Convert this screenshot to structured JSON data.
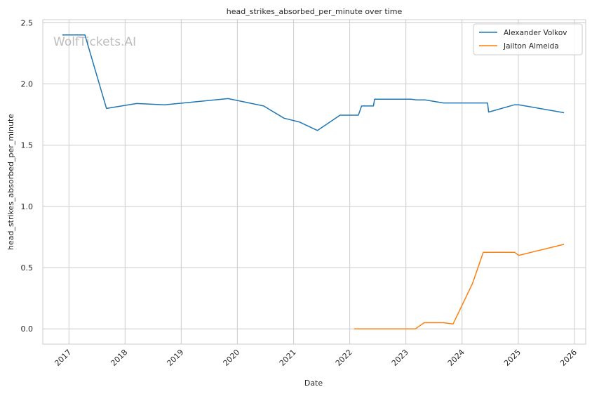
{
  "chart_data": {
    "type": "line",
    "title": "head_strikes_absorbed_per_minute over time",
    "xlabel": "Date",
    "ylabel": "head_strikes_absorbed_per_minute",
    "watermark": "WolfTickets.AI",
    "x_tick_labels": [
      "2017",
      "2018",
      "2019",
      "2020",
      "2021",
      "2022",
      "2023",
      "2024",
      "2025",
      "2026"
    ],
    "y_tick_labels": [
      "0.0",
      "0.5",
      "1.0",
      "1.5",
      "2.0",
      "2.5"
    ],
    "xlim": [
      "2016-07-15",
      "2026-03-15"
    ],
    "ylim": [
      -0.125,
      2.525
    ],
    "grid": true,
    "legend_position": "top-right",
    "series": [
      {
        "name": "Alexander Volkov",
        "color": "#1f77b4",
        "points": [
          [
            "2016-11-19",
            2.4
          ],
          [
            "2017-04-15",
            2.4
          ],
          [
            "2017-09-02",
            1.8
          ],
          [
            "2018-03-17",
            1.84
          ],
          [
            "2018-09-15",
            1.83
          ],
          [
            "2019-11-02",
            1.88
          ],
          [
            "2020-06-20",
            1.82
          ],
          [
            "2020-10-31",
            1.72
          ],
          [
            "2021-02-06",
            1.69
          ],
          [
            "2021-06-05",
            1.62
          ],
          [
            "2021-10-30",
            1.745
          ],
          [
            "2022-02-26",
            1.745
          ],
          [
            "2022-03-19",
            1.82
          ],
          [
            "2022-06-04",
            1.82
          ],
          [
            "2022-06-11",
            1.875
          ],
          [
            "2023-02-04",
            1.875
          ],
          [
            "2023-03-11",
            1.87
          ],
          [
            "2023-05-06",
            1.87
          ],
          [
            "2023-09-02",
            1.845
          ],
          [
            "2024-06-15",
            1.845
          ],
          [
            "2024-06-22",
            1.77
          ],
          [
            "2024-12-07",
            1.83
          ],
          [
            "2025-01-04",
            1.83
          ],
          [
            "2025-10-25",
            1.765
          ]
        ]
      },
      {
        "name": "Jailton Almeida",
        "color": "#ff7f0e",
        "points": [
          [
            "2022-01-29",
            0.0
          ],
          [
            "2023-03-04",
            0.0
          ],
          [
            "2023-04-29",
            0.05
          ],
          [
            "2023-09-02",
            0.05
          ],
          [
            "2023-11-04",
            0.04
          ],
          [
            "2024-03-09",
            0.37
          ],
          [
            "2024-05-18",
            0.625
          ],
          [
            "2024-12-07",
            0.625
          ],
          [
            "2025-01-04",
            0.6
          ],
          [
            "2025-10-25",
            0.69
          ]
        ]
      }
    ]
  }
}
